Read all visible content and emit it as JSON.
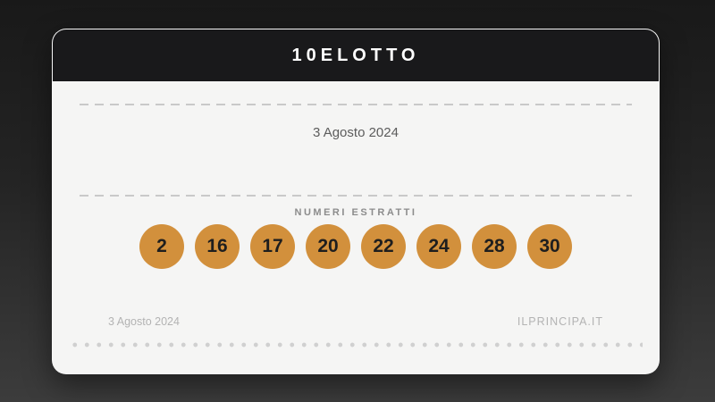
{
  "card": {
    "title": "10ELOTTO",
    "draw_date": "3 Agosto 2024",
    "numbers_label": "NUMERI ESTRATTI",
    "numbers": [
      2,
      16,
      17,
      20,
      22,
      24,
      28,
      30
    ],
    "footer": {
      "date": "3 Agosto 2024",
      "site": "ILPRINCIPA.IT"
    }
  },
  "colors": {
    "ball_background": "#d2903c",
    "ball_text": "#1e1e1e",
    "header_background": "#19191b",
    "card_background": "#f5f5f4",
    "page_background_top": "#191919",
    "page_background_bottom": "#3c3c3c",
    "muted_text": "#8c8c8c",
    "footer_text": "#b3b3b3"
  }
}
